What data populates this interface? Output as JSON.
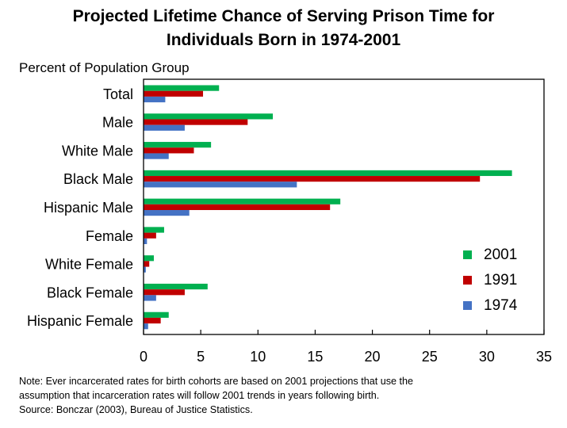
{
  "chart_data": {
    "type": "bar",
    "orientation": "horizontal",
    "title_lines": [
      "Projected Lifetime Chance of Serving Prison Time for",
      "Individuals Born in 1974-2001"
    ],
    "ylabel": "Percent of Population Group",
    "categories": [
      "Total",
      "Male",
      "White Male",
      "Black Male",
      "Hispanic Male",
      "Female",
      "White Female",
      "Black Female",
      "Hispanic Female"
    ],
    "series": [
      {
        "name": "2001",
        "color": "#00b050",
        "values": [
          6.6,
          11.3,
          5.9,
          32.2,
          17.2,
          1.8,
          0.9,
          5.6,
          2.2
        ]
      },
      {
        "name": "1991",
        "color": "#c00000",
        "values": [
          5.2,
          9.1,
          4.4,
          29.4,
          16.3,
          1.1,
          0.5,
          3.6,
          1.5
        ]
      },
      {
        "name": "1974",
        "color": "#4472c4",
        "values": [
          1.9,
          3.6,
          2.2,
          13.4,
          4.0,
          0.3,
          0.2,
          1.1,
          0.4
        ]
      }
    ],
    "xlim": [
      0,
      35
    ],
    "xticks": [
      "0",
      "5",
      "10",
      "15",
      "20",
      "25",
      "30",
      "35"
    ],
    "grid": false,
    "legend_position": "bottom-right"
  },
  "notes": [
    "Note: Ever incarcerated rates for birth cohorts are based on 2001 projections that use the",
    "assumption that incarceration rates will follow 2001 trends in years following birth.",
    "Source: Bonczar (2003), Bureau of Justice Statistics."
  ]
}
